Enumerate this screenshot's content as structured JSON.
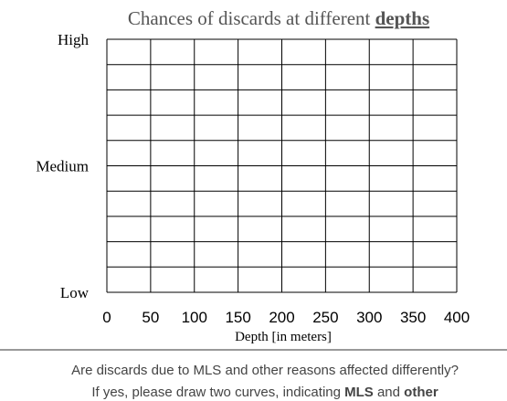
{
  "chart_data": {
    "type": "line",
    "title_parts": [
      "Chances of discards at different ",
      "depths"
    ],
    "xlabel": "Depth [in meters]",
    "xlim": [
      0,
      400
    ],
    "xticks": [
      0,
      50,
      100,
      150,
      200,
      250,
      300,
      350,
      400
    ],
    "ylim": [
      0,
      10
    ],
    "yticks": [
      {
        "value": 0,
        "label": "Low"
      },
      {
        "value": 5,
        "label": "Medium"
      },
      {
        "value": 10,
        "label": "High"
      }
    ],
    "grid": true,
    "series": []
  },
  "footer": {
    "line1": "Are discards due to MLS and other reasons affected differently?",
    "line2_parts": [
      "If yes, please draw two curves, indicating ",
      "MLS",
      " and ",
      "other"
    ]
  }
}
